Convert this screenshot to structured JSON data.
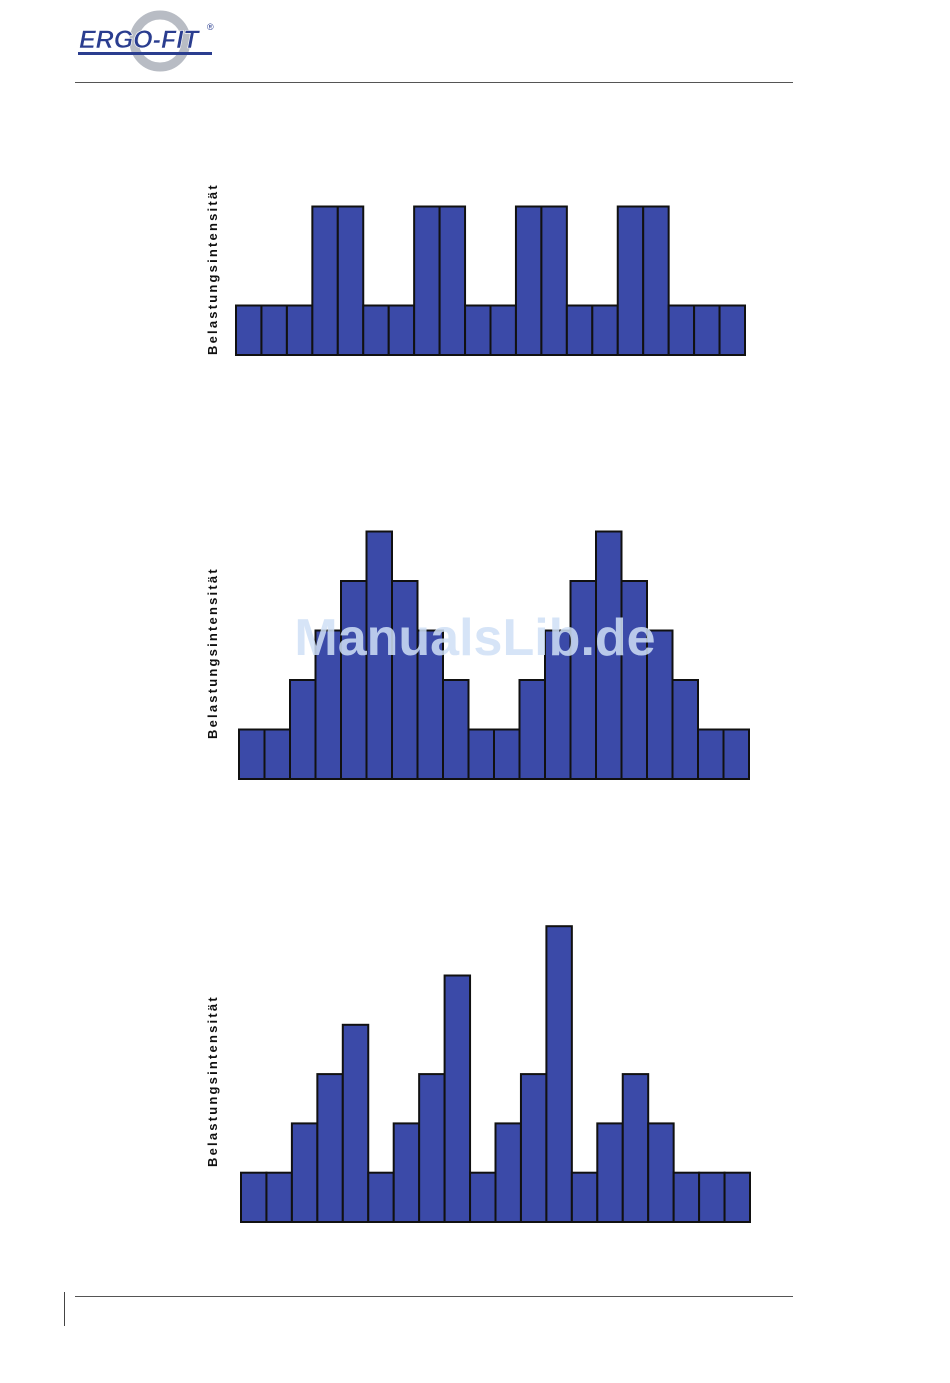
{
  "header": {
    "logo_text": "ERGO-FIT",
    "logo_registered": "®",
    "colors": {
      "logo_blue": "#2a3d8f",
      "logo_ring": "#b8bcc4"
    }
  },
  "watermark": "ManualsLib.de",
  "colors": {
    "bar_fill": "#3b4aa8",
    "bar_stroke": "#111111"
  },
  "chart_data": [
    {
      "type": "bar",
      "ylabel": "Belastungsintensität",
      "xlabel": "",
      "ylim": [
        0,
        5
      ],
      "values": [
        1,
        1,
        1,
        3,
        3,
        1,
        1,
        3,
        3,
        1,
        1,
        3,
        3,
        1,
        1,
        3,
        3,
        1,
        1,
        1
      ],
      "grid": false
    },
    {
      "type": "bar",
      "ylabel": "Belastungsintensität",
      "xlabel": "",
      "ylim": [
        0,
        5
      ],
      "values": [
        1,
        1,
        2,
        3,
        4,
        5,
        4,
        3,
        2,
        1,
        1,
        2,
        3,
        4,
        5,
        4,
        3,
        2,
        1,
        1
      ],
      "grid": false
    },
    {
      "type": "bar",
      "ylabel": "Belastungsintensität",
      "xlabel": "",
      "ylim": [
        0,
        6
      ],
      "values": [
        1,
        1,
        2,
        3,
        4,
        1,
        2,
        3,
        5,
        1,
        2,
        3,
        6,
        1,
        2,
        3,
        2,
        1,
        1,
        1
      ],
      "grid": false
    }
  ]
}
